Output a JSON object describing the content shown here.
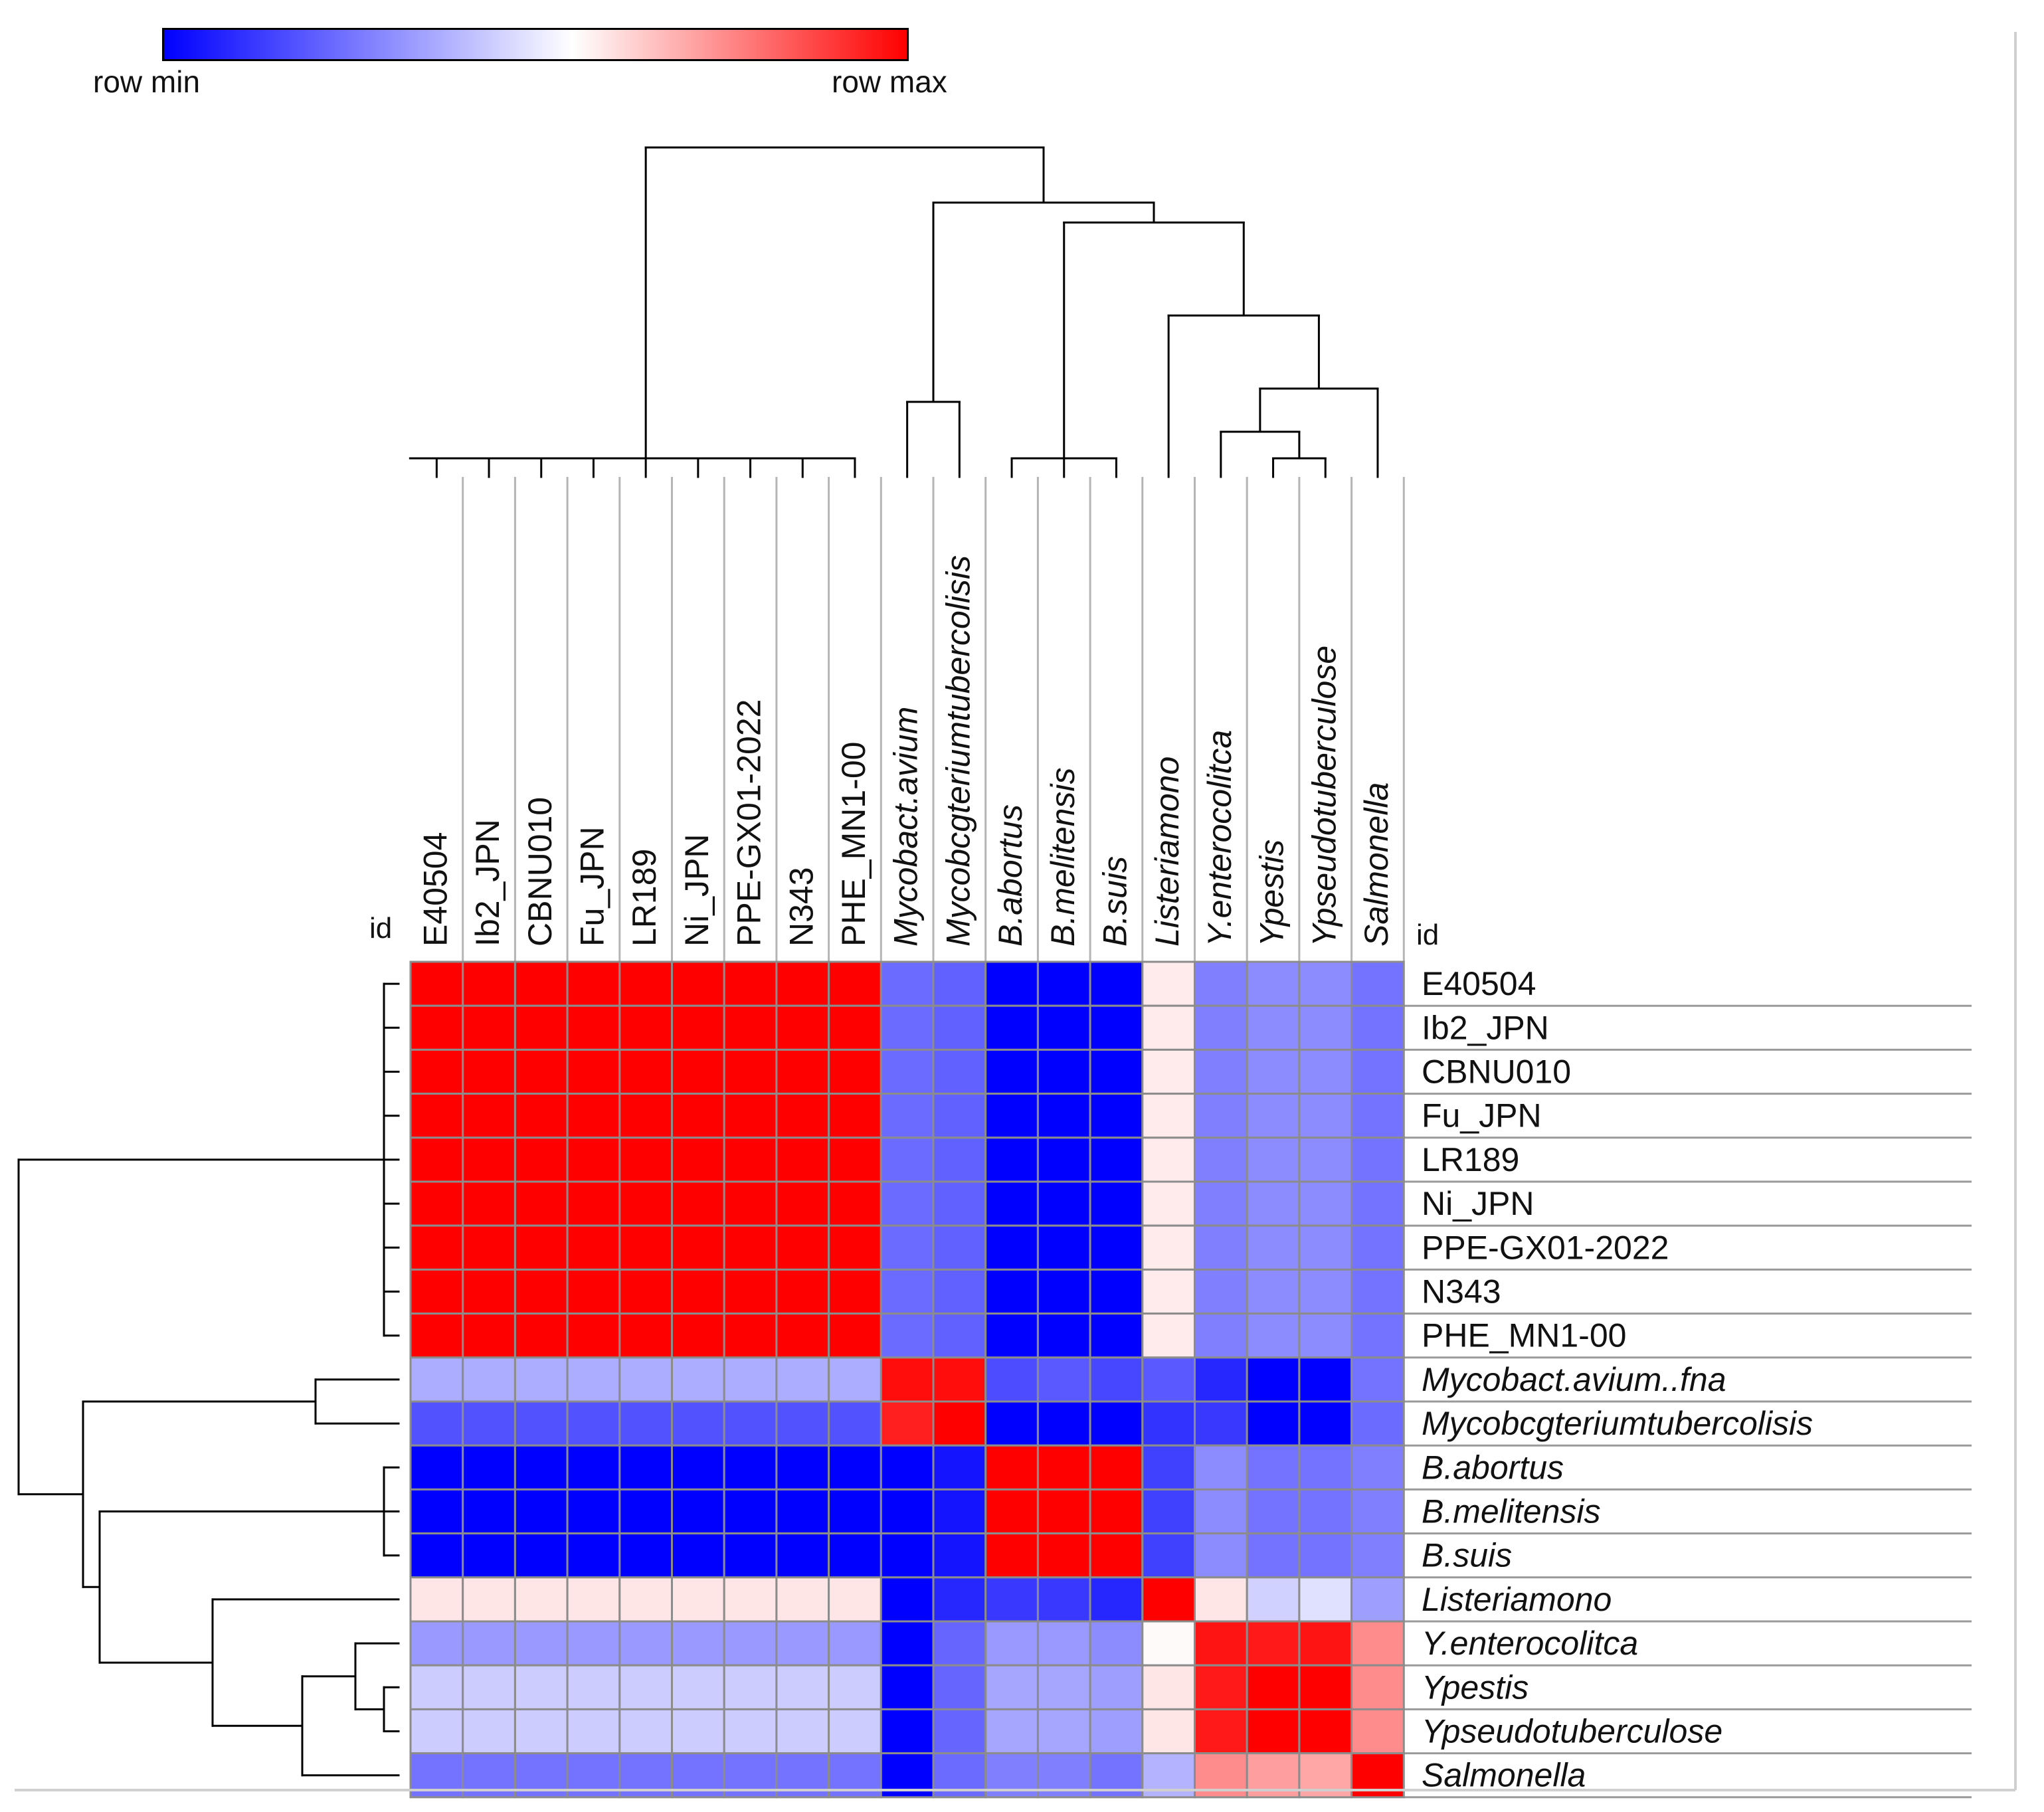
{
  "chart_data": {
    "type": "heatmap",
    "title": "",
    "colorbar": {
      "min_label": "row min",
      "max_label": "row max",
      "colors": [
        "#0000ff",
        "#ffffff",
        "#ff0000"
      ]
    },
    "row_header": "id",
    "column_header": "id",
    "columns": [
      {
        "name": "E40504",
        "italic": false
      },
      {
        "name": "Ib2_JPN",
        "italic": false
      },
      {
        "name": "CBNU010",
        "italic": false
      },
      {
        "name": "Fu_JPN",
        "italic": false
      },
      {
        "name": "LR189",
        "italic": false
      },
      {
        "name": "Ni_JPN",
        "italic": false
      },
      {
        "name": "PPE-GX01-2022",
        "italic": false
      },
      {
        "name": "N343",
        "italic": false
      },
      {
        "name": "PHE_MN1-00",
        "italic": false
      },
      {
        "name": "Mycobact.avium",
        "italic": true
      },
      {
        "name": "Mycobcgteriumtubercolisis",
        "italic": true
      },
      {
        "name": "B.abortus",
        "italic": true
      },
      {
        "name": "B.melitensis",
        "italic": true
      },
      {
        "name": "B.suis",
        "italic": true
      },
      {
        "name": "Listeriamono",
        "italic": true
      },
      {
        "name": "Y.enterocolitca",
        "italic": true
      },
      {
        "name": "Ypestis",
        "italic": true
      },
      {
        "name": "Ypseudotuberculose",
        "italic": true
      },
      {
        "name": "Salmonella",
        "italic": true
      }
    ],
    "rows": [
      {
        "name": "E40504",
        "italic": false
      },
      {
        "name": "Ib2_JPN",
        "italic": false
      },
      {
        "name": "CBNU010",
        "italic": false
      },
      {
        "name": "Fu_JPN",
        "italic": false
      },
      {
        "name": "LR189",
        "italic": false
      },
      {
        "name": "Ni_JPN",
        "italic": false
      },
      {
        "name": "PPE-GX01-2022",
        "italic": false
      },
      {
        "name": "N343",
        "italic": false
      },
      {
        "name": "PHE_MN1-00",
        "italic": false
      },
      {
        "name": "Mycobact.avium..fna",
        "italic": true
      },
      {
        "name": "Mycobcgteriumtubercolisis",
        "italic": true
      },
      {
        "name": "B.abortus",
        "italic": true
      },
      {
        "name": "B.melitensis",
        "italic": true
      },
      {
        "name": "B.suis",
        "italic": true
      },
      {
        "name": "Listeriamono",
        "italic": true
      },
      {
        "name": "Y.enterocolitca",
        "italic": true
      },
      {
        "name": "Ypestis",
        "italic": true
      },
      {
        "name": "Ypseudotuberculose",
        "italic": true
      },
      {
        "name": "Salmonella",
        "italic": true
      }
    ],
    "value_scale": "row-normalized, -1 = row min (blue), 0 = mid (white), 1 = row max (red)",
    "values": [
      [
        1,
        1,
        1,
        1,
        1,
        1,
        1,
        1,
        1,
        -0.58,
        -0.62,
        -1,
        -1,
        -1,
        0.08,
        -0.5,
        -0.45,
        -0.45,
        -0.55
      ],
      [
        1,
        1,
        1,
        1,
        1,
        1,
        1,
        1,
        1,
        -0.58,
        -0.62,
        -1,
        -1,
        -1,
        0.08,
        -0.5,
        -0.45,
        -0.45,
        -0.55
      ],
      [
        1,
        1,
        1,
        1,
        1,
        1,
        1,
        1,
        1,
        -0.58,
        -0.62,
        -1,
        -1,
        -1,
        0.08,
        -0.5,
        -0.45,
        -0.45,
        -0.55
      ],
      [
        1,
        1,
        1,
        1,
        1,
        1,
        1,
        1,
        1,
        -0.58,
        -0.62,
        -1,
        -1,
        -1,
        0.08,
        -0.5,
        -0.45,
        -0.45,
        -0.55
      ],
      [
        1,
        1,
        1,
        1,
        1,
        1,
        1,
        1,
        1,
        -0.58,
        -0.62,
        -1,
        -1,
        -1,
        0.08,
        -0.5,
        -0.45,
        -0.45,
        -0.55
      ],
      [
        1,
        1,
        1,
        1,
        1,
        1,
        1,
        1,
        1,
        -0.58,
        -0.62,
        -1,
        -1,
        -1,
        0.08,
        -0.5,
        -0.45,
        -0.45,
        -0.55
      ],
      [
        1,
        1,
        1,
        1,
        1,
        1,
        1,
        1,
        1,
        -0.58,
        -0.62,
        -1,
        -1,
        -1,
        0.08,
        -0.5,
        -0.45,
        -0.45,
        -0.55
      ],
      [
        1,
        1,
        1,
        1,
        1,
        1,
        1,
        1,
        1,
        -0.58,
        -0.62,
        -1,
        -1,
        -1,
        0.08,
        -0.5,
        -0.45,
        -0.45,
        -0.55
      ],
      [
        1,
        1,
        1,
        1,
        1,
        1,
        1,
        1,
        1,
        -0.58,
        -0.62,
        -1,
        -1,
        -1,
        0.08,
        -0.5,
        -0.45,
        -0.45,
        -0.55
      ],
      [
        -0.32,
        -0.32,
        -0.32,
        -0.32,
        -0.32,
        -0.32,
        -0.32,
        -0.32,
        -0.32,
        0.95,
        0.95,
        -0.7,
        -0.65,
        -0.72,
        -0.65,
        -0.85,
        -1,
        -1,
        -0.55
      ],
      [
        -0.68,
        -0.68,
        -0.68,
        -0.68,
        -0.68,
        -0.68,
        -0.68,
        -0.68,
        -0.68,
        0.88,
        1,
        -1,
        -1,
        -1,
        -0.8,
        -0.78,
        -1,
        -1,
        -0.58
      ],
      [
        -1,
        -1,
        -1,
        -1,
        -1,
        -1,
        -1,
        -1,
        -1,
        -1,
        -0.92,
        1,
        1,
        1,
        -0.75,
        -0.45,
        -0.55,
        -0.55,
        -0.5
      ],
      [
        -1,
        -1,
        -1,
        -1,
        -1,
        -1,
        -1,
        -1,
        -1,
        -1,
        -0.92,
        1,
        1,
        1,
        -0.75,
        -0.45,
        -0.55,
        -0.55,
        -0.5
      ],
      [
        -1,
        -1,
        -1,
        -1,
        -1,
        -1,
        -1,
        -1,
        -1,
        -1,
        -0.92,
        1,
        1,
        1,
        -0.75,
        -0.45,
        -0.55,
        -0.55,
        -0.5
      ],
      [
        0.1,
        0.1,
        0.1,
        0.1,
        0.1,
        0.1,
        0.1,
        0.1,
        0.1,
        -1,
        -0.85,
        -0.78,
        -0.78,
        -0.85,
        1,
        0.1,
        -0.18,
        -0.12,
        -0.38
      ],
      [
        -0.4,
        -0.4,
        -0.4,
        -0.4,
        -0.4,
        -0.4,
        -0.4,
        -0.4,
        -0.4,
        -1,
        -0.6,
        -0.4,
        -0.4,
        -0.45,
        0.02,
        0.92,
        0.9,
        0.92,
        0.45
      ],
      [
        -0.2,
        -0.2,
        -0.2,
        -0.2,
        -0.2,
        -0.2,
        -0.2,
        -0.2,
        -0.2,
        -1,
        -0.6,
        -0.35,
        -0.35,
        -0.38,
        0.1,
        0.9,
        1,
        1,
        0.45
      ],
      [
        -0.2,
        -0.2,
        -0.2,
        -0.2,
        -0.2,
        -0.2,
        -0.2,
        -0.2,
        -0.2,
        -1,
        -0.6,
        -0.35,
        -0.35,
        -0.38,
        0.1,
        0.9,
        1,
        1,
        0.45
      ],
      [
        -0.55,
        -0.55,
        -0.55,
        -0.55,
        -0.55,
        -0.55,
        -0.55,
        -0.55,
        -0.55,
        -1,
        -0.58,
        -0.5,
        -0.5,
        -0.55,
        -0.3,
        0.45,
        0.38,
        0.35,
        1
      ]
    ],
    "dendrogram_linkage_order": {
      "columns": "[[E40504..PHE_MN1-00], [[Mycobact.avium, Mycobcgteriumtubercolisis], [[B.abortus, B.melitensis, B.suis], [Listeriamono, [[Y.enterocolitca, [Ypestis, Ypseudotuberculose]], Salmonella]]]]]",
      "rows": "[[E40504..PHE_MN1-00], [[Mycobact.avium..fna, Mycobcgteriumtubercolisis], [[B.abortus, B.melitensis, B.suis], [Listeriamono, [[Y.enterocolitca, [Ypestis, Ypseudotuberculose]], Salmonella]]]]]"
    }
  }
}
